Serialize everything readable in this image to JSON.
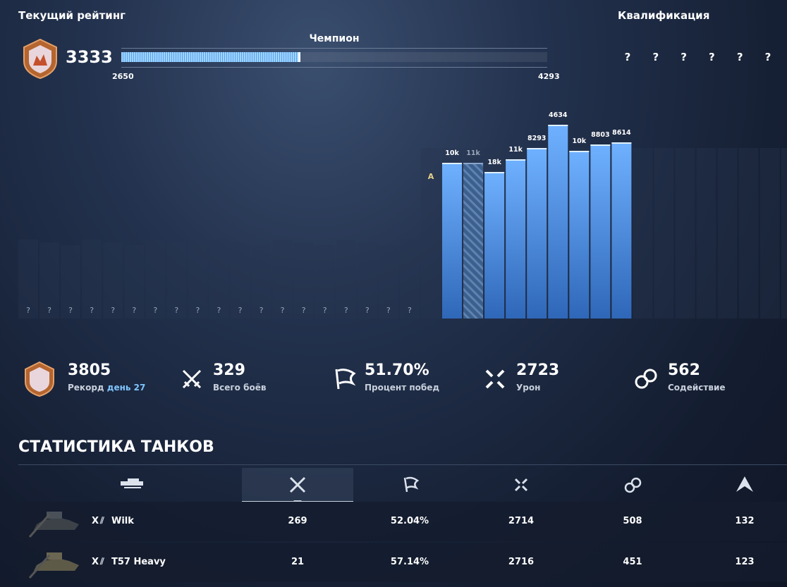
{
  "header": {
    "title": "Текущий рейтинг",
    "rating": 3333,
    "league": "Чемпион",
    "min": 2650,
    "max": 4293,
    "qualification_title": "Квалификация",
    "qualification_slots": [
      "?",
      "?",
      "?",
      "?",
      "?",
      "?"
    ]
  },
  "chart": {
    "empty_labels": [
      "?",
      "?",
      "?",
      "?",
      "?",
      "?",
      "?",
      "?",
      "?",
      "?",
      "?",
      "?",
      "?",
      "?",
      "?",
      "?",
      "?",
      "?",
      "?"
    ],
    "marker": "A",
    "bars": [
      {
        "label": "10k",
        "height": 221
      },
      {
        "label": "11k",
        "height": 221
      },
      {
        "label": "18k",
        "height": 208
      },
      {
        "label": "11k",
        "height": 226
      },
      {
        "label": "8293",
        "height": 242
      },
      {
        "label": "4634",
        "height": 275
      },
      {
        "label": "10k",
        "height": 238
      },
      {
        "label": "8803",
        "height": 247
      },
      {
        "label": "8614",
        "height": 250
      }
    ]
  },
  "stats": {
    "record": {
      "value": 3805,
      "label": "Рекорд",
      "day": "день 27"
    },
    "items": [
      {
        "value": 329,
        "label": "Всего боёв"
      },
      {
        "value": "51.70%",
        "label": "Процент побед"
      },
      {
        "value": 2723,
        "label": "Урон"
      },
      {
        "value": 562,
        "label": "Содействие"
      }
    ]
  },
  "tanks": {
    "title": "СТАТИСТИКА ТАНКОВ",
    "rows": [
      {
        "tier": "X",
        "name": "Wilk",
        "cells": [
          269,
          "52.04%",
          2714,
          508,
          132
        ]
      },
      {
        "tier": "X",
        "name": "T57 Heavy",
        "cells": [
          21,
          "57.14%",
          2716,
          451,
          123
        ]
      }
    ]
  }
}
